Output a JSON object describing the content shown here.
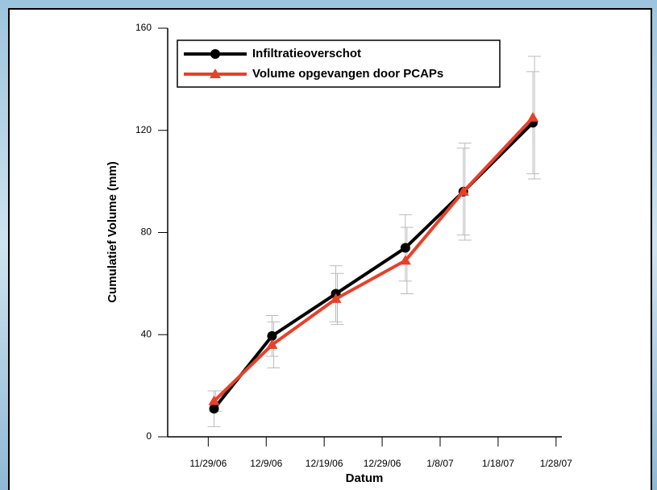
{
  "chart_data": {
    "type": "line",
    "x": [
      "2006-11-30",
      "2006-12-10",
      "2006-12-21",
      "2007-01-02",
      "2007-01-12",
      "2007-01-24"
    ],
    "series": [
      {
        "name": "Infiltratieoverschot",
        "color": "#000000",
        "marker": "circle",
        "values": [
          11,
          39.5,
          56,
          74,
          96,
          123
        ],
        "errors": [
          7,
          8,
          11,
          13,
          17,
          20
        ]
      },
      {
        "name": "Volume opgevangen door PCAPs",
        "color": "#e8402a",
        "marker": "triangle",
        "values": [
          14,
          36,
          54,
          69,
          96,
          125
        ],
        "errors": [
          4,
          9,
          10,
          13,
          19,
          24
        ]
      }
    ],
    "xlabel": "Datum",
    "ylabel": "Cumulatief Volume (mm)",
    "xlim": [
      "2006-11-22",
      "2007-01-29"
    ],
    "xticks": [
      {
        "value": "2006-11-29",
        "label": "11/29/06"
      },
      {
        "value": "2006-12-09",
        "label": "12/9/06"
      },
      {
        "value": "2006-12-19",
        "label": "12/19/06"
      },
      {
        "value": "2006-12-29",
        "label": "12/29/06"
      },
      {
        "value": "2007-01-08",
        "label": "1/8/07"
      },
      {
        "value": "2007-01-18",
        "label": "1/18/07"
      },
      {
        "value": "2007-01-28",
        "label": "1/28/07"
      }
    ],
    "ylim": [
      0,
      160
    ],
    "yticks": [
      0,
      40,
      80,
      120,
      160
    ],
    "legend": "top-left"
  }
}
